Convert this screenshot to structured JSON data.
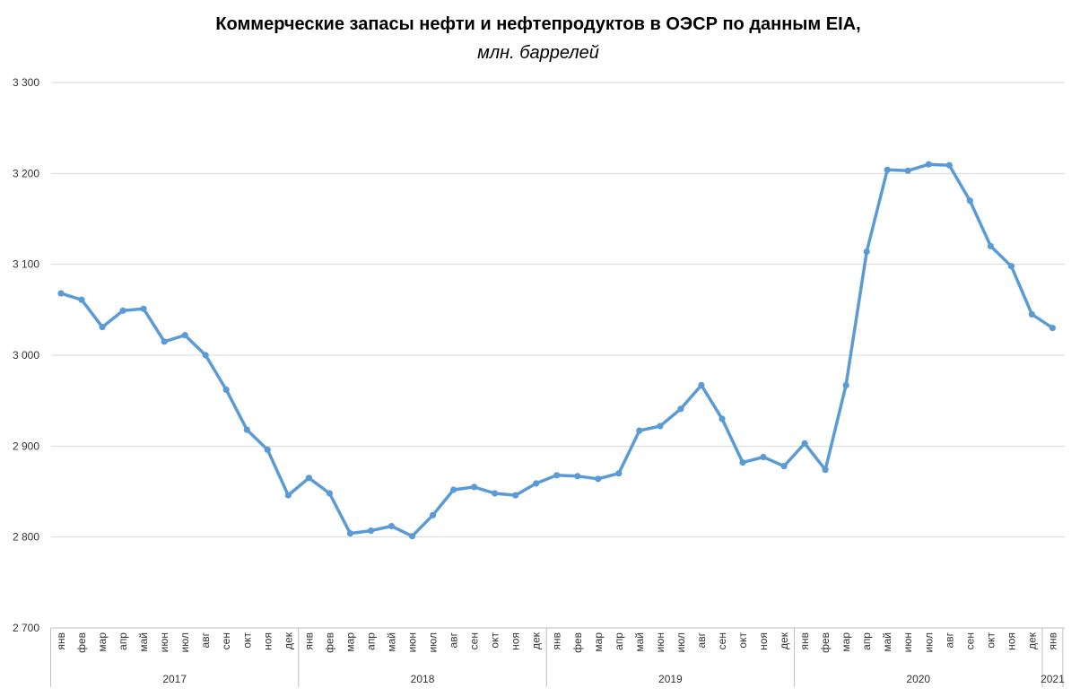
{
  "chart_data": {
    "type": "line",
    "title": "Коммерческие запасы нефти и нефтепродуктов в ОЭСР по данным EIA,",
    "subtitle": "млн. баррелей",
    "ylim": [
      2700,
      3300
    ],
    "yticks": [
      2700,
      2800,
      2900,
      3000,
      3100,
      3200,
      3300
    ],
    "ytick_labels": [
      "2 700",
      "2 800",
      "2 900",
      "3 000",
      "3 100",
      "3 200",
      "3 300"
    ],
    "grid": true,
    "colors": {
      "line": "#5b9bd5",
      "grid": "#d9d9d9",
      "axis": "#bfbfbf"
    },
    "years": [
      {
        "label": "2017",
        "months": [
          "янв",
          "фев",
          "мар",
          "апр",
          "май",
          "июн",
          "июл",
          "авг",
          "сен",
          "окт",
          "ноя",
          "дек"
        ]
      },
      {
        "label": "2018",
        "months": [
          "янв",
          "фев",
          "мар",
          "апр",
          "май",
          "июн",
          "июл",
          "авг",
          "сен",
          "окт",
          "ноя",
          "дек"
        ]
      },
      {
        "label": "2019",
        "months": [
          "янв",
          "фев",
          "мар",
          "апр",
          "май",
          "июн",
          "июл",
          "авг",
          "сен",
          "окт",
          "ноя",
          "дек"
        ]
      },
      {
        "label": "2020",
        "months": [
          "янв",
          "фев",
          "мар",
          "апр",
          "май",
          "июн",
          "июл",
          "авг",
          "сен",
          "окт",
          "ноя",
          "дек"
        ]
      },
      {
        "label": "2021",
        "months": [
          "янв"
        ]
      }
    ],
    "values": [
      3068,
      3061,
      3031,
      3049,
      3051,
      3015,
      3022,
      3000,
      2962,
      2918,
      2896,
      2846,
      2865,
      2848,
      2804,
      2807,
      2812,
      2801,
      2824,
      2852,
      2855,
      2848,
      2846,
      2859,
      2868,
      2867,
      2864,
      2870,
      2917,
      2922,
      2941,
      2967,
      2930,
      2882,
      2888,
      2878,
      2903,
      2874,
      2967,
      3114,
      3204,
      3203,
      3210,
      3209,
      3170,
      3120,
      3098,
      3045,
      3030
    ]
  }
}
